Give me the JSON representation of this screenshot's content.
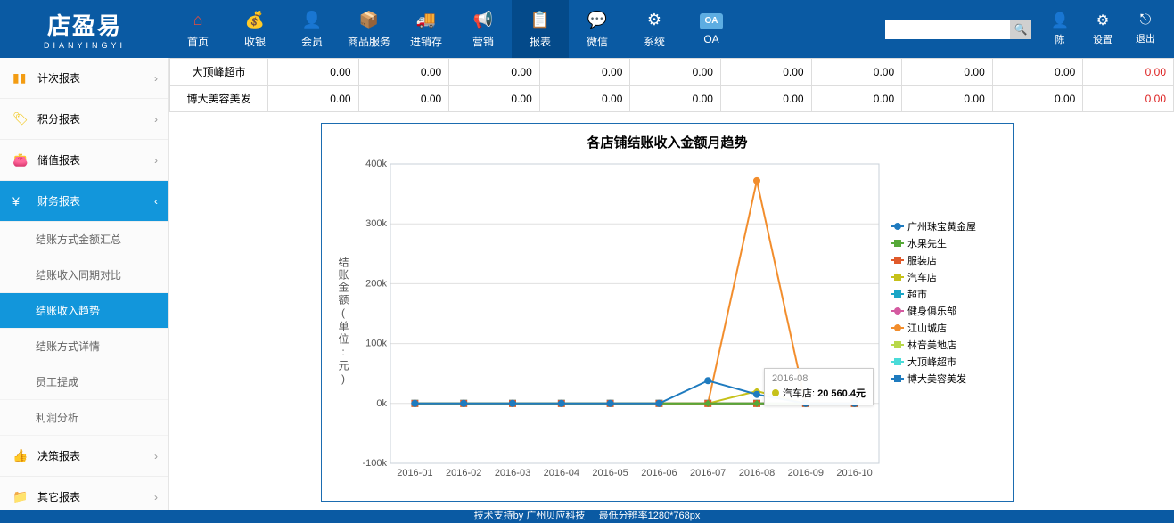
{
  "logo": {
    "main": "店盈易",
    "sub": "DIANYINGYI"
  },
  "nav": [
    {
      "label": "首页",
      "glyph": "⌂",
      "color": "#e74c3c"
    },
    {
      "label": "收银",
      "glyph": "💰",
      "color": "#ffffff"
    },
    {
      "label": "会员",
      "glyph": "👤",
      "color": "#2ecc71"
    },
    {
      "label": "商品服务",
      "glyph": "📦",
      "color": "#f39c12"
    },
    {
      "label": "进销存",
      "glyph": "🚚",
      "color": "#ffffff"
    },
    {
      "label": "营销",
      "glyph": "📢",
      "color": "#ffffff"
    },
    {
      "label": "报表",
      "glyph": "📋",
      "color": "#ffffff",
      "active": true
    },
    {
      "label": "微信",
      "glyph": "💬",
      "color": "#2ecc71"
    },
    {
      "label": "系统",
      "glyph": "⚙",
      "color": "#ffffff"
    },
    {
      "label": "OA",
      "glyph": "OA",
      "color": "#5dade2",
      "text": true
    }
  ],
  "right_tools": [
    {
      "label": "陈",
      "glyph": "👤"
    },
    {
      "label": "设置",
      "glyph": "⚙"
    },
    {
      "label": "退出",
      "glyph": "⎋"
    }
  ],
  "search_placeholder": "",
  "sidebar": {
    "groups": [
      {
        "label": "计次报表",
        "icon": "▮▮",
        "icolor": "#f39c12",
        "expand": "›"
      },
      {
        "label": "积分报表",
        "icon": "🏷",
        "icolor": "#f1c40f",
        "expand": "›"
      },
      {
        "label": "储值报表",
        "icon": "👛",
        "icolor": "#a0522d",
        "expand": "›"
      },
      {
        "label": "财务报表",
        "icon": "¥",
        "icolor": "#fff",
        "expand": "‹",
        "active": true,
        "subs": [
          {
            "label": "结账方式金额汇总"
          },
          {
            "label": "结账收入同期对比"
          },
          {
            "label": "结账收入趋势",
            "active": true
          },
          {
            "label": "结账方式详情"
          },
          {
            "label": "员工提成"
          },
          {
            "label": "利润分析"
          }
        ]
      },
      {
        "label": "决策报表",
        "icon": "👍",
        "icolor": "#8e44ad",
        "expand": "›"
      },
      {
        "label": "其它报表",
        "icon": "📁",
        "icolor": "#e74c3c",
        "expand": "›"
      }
    ]
  },
  "table": {
    "rows": [
      {
        "name": "大顶峰超市",
        "cells": [
          "0.00",
          "0.00",
          "0.00",
          "0.00",
          "0.00",
          "0.00",
          "0.00",
          "0.00",
          "0.00",
          "0.00"
        ],
        "last_red": true
      },
      {
        "name": "博大美容美发",
        "cells": [
          "0.00",
          "0.00",
          "0.00",
          "0.00",
          "0.00",
          "0.00",
          "0.00",
          "0.00",
          "0.00",
          "0.00"
        ],
        "last_red": true
      }
    ]
  },
  "chart": {
    "title": "各店铺结账收入金额月趋势",
    "ylabel": "结账金额(单位:元)",
    "type": "line",
    "xcats": [
      "2016-01",
      "2016-02",
      "2016-03",
      "2016-04",
      "2016-05",
      "2016-06",
      "2016-07",
      "2016-08",
      "2016-09",
      "2016-10"
    ],
    "ylim": [
      -100000,
      400000
    ],
    "yticks": [
      -100000,
      0,
      100000,
      200000,
      300000,
      400000
    ],
    "ytick_labels": [
      "-100k",
      "0k",
      "100k",
      "200k",
      "300k",
      "400k"
    ],
    "grid_color": "#e0e0e0",
    "axis_color": "#c8d0d8",
    "bg": "#ffffff",
    "label_fontsize": 11,
    "series": [
      {
        "name": "广州珠宝黄金屋",
        "color": "#1f7bbf",
        "marker": "circle",
        "data": [
          0,
          0,
          0,
          0,
          0,
          0,
          38000,
          15000,
          0,
          0
        ]
      },
      {
        "name": "水果先生",
        "color": "#56a938",
        "marker": "diamond",
        "data": [
          0,
          0,
          0,
          0,
          0,
          0,
          0,
          0,
          0,
          0
        ]
      },
      {
        "name": "服装店",
        "color": "#e05a2b",
        "marker": "square",
        "data": [
          0,
          0,
          0,
          0,
          0,
          0,
          0,
          0,
          0,
          0
        ]
      },
      {
        "name": "汽车店",
        "color": "#c6c11a",
        "marker": "diamond",
        "data": [
          0,
          0,
          0,
          0,
          0,
          0,
          0,
          20560.4,
          0,
          0
        ]
      },
      {
        "name": "超市",
        "color": "#1aa6c6",
        "marker": "tri-down",
        "data": [
          0,
          0,
          0,
          0,
          0,
          0,
          0,
          0,
          0,
          0
        ]
      },
      {
        "name": "健身俱乐部",
        "color": "#d45aa0",
        "marker": "circle",
        "data": [
          0,
          0,
          0,
          0,
          0,
          0,
          0,
          0,
          0,
          0
        ]
      },
      {
        "name": "江山城店",
        "color": "#f28d2c",
        "marker": "circle",
        "data": [
          0,
          0,
          0,
          0,
          0,
          0,
          0,
          372000,
          0,
          0
        ]
      },
      {
        "name": "林音美地店",
        "color": "#b8d84a",
        "marker": "tri-up",
        "data": [
          0,
          0,
          0,
          0,
          0,
          0,
          0,
          0,
          0,
          0
        ]
      },
      {
        "name": "大顶峰超市",
        "color": "#4adbd8",
        "marker": "tri-down",
        "data": [
          0,
          0,
          0,
          0,
          0,
          0,
          0,
          0,
          0,
          0
        ]
      },
      {
        "name": "博大美容美发",
        "color": "#1f7bbf",
        "marker": "plus",
        "data": [
          0,
          0,
          0,
          0,
          0,
          0,
          0,
          0,
          0,
          0
        ]
      }
    ],
    "tooltip": {
      "x": 7,
      "date": "2016-08",
      "series": "汽车店",
      "value_text": "20 560.4元",
      "dot_color": "#c6c11a"
    }
  },
  "footer": {
    "left": "技术支持by 广州贝应科技",
    "right": "最低分辨率1280*768px"
  }
}
